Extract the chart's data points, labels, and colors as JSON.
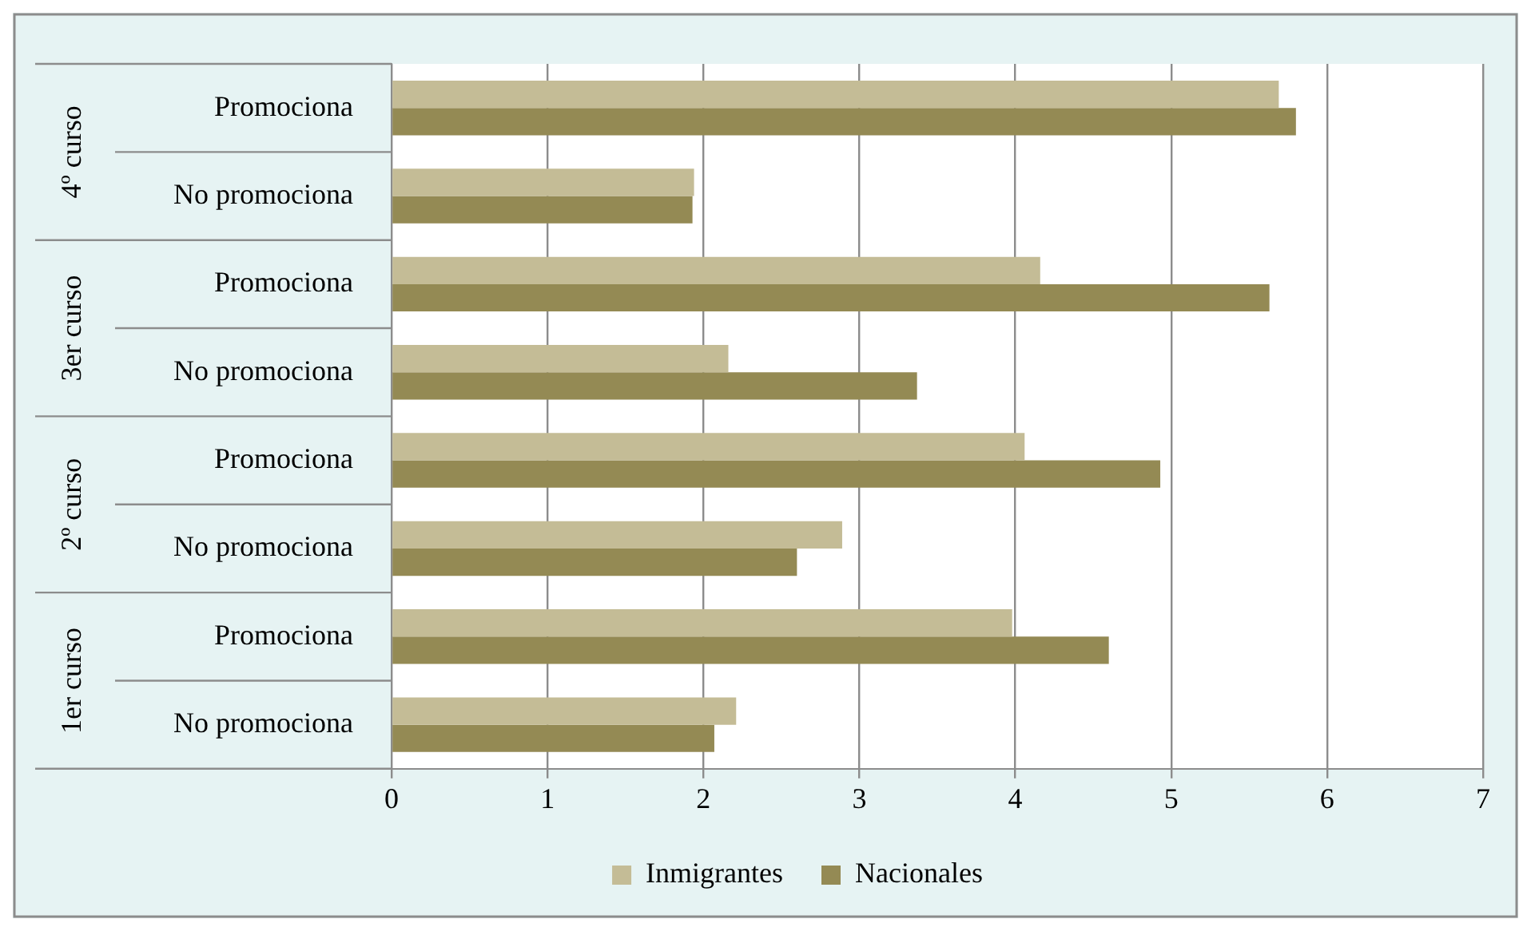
{
  "chart_data": {
    "type": "bar",
    "orientation": "horizontal",
    "categories": [
      "Promociona",
      "No promociona",
      "Promociona",
      "No promociona",
      "Promociona",
      "No promociona",
      "Promociona",
      "No promociona"
    ],
    "series": [
      {
        "name": "Inmigrantes",
        "color": "#c4bc96",
        "values": [
          5.69,
          1.94,
          4.16,
          2.16,
          4.06,
          2.89,
          3.98,
          2.21
        ]
      },
      {
        "name": "Nacionales",
        "color": "#948a54",
        "values": [
          5.8,
          1.93,
          5.63,
          3.37,
          4.93,
          2.6,
          4.6,
          2.07
        ]
      }
    ],
    "xlim": [
      0,
      7
    ],
    "xticks": [
      0,
      1,
      2,
      3,
      4,
      5,
      6,
      7
    ],
    "grid": "x",
    "legend": "bottom",
    "annotations": [
      "4º curso",
      "3er curso",
      "2º curso",
      "1er curso"
    ]
  }
}
